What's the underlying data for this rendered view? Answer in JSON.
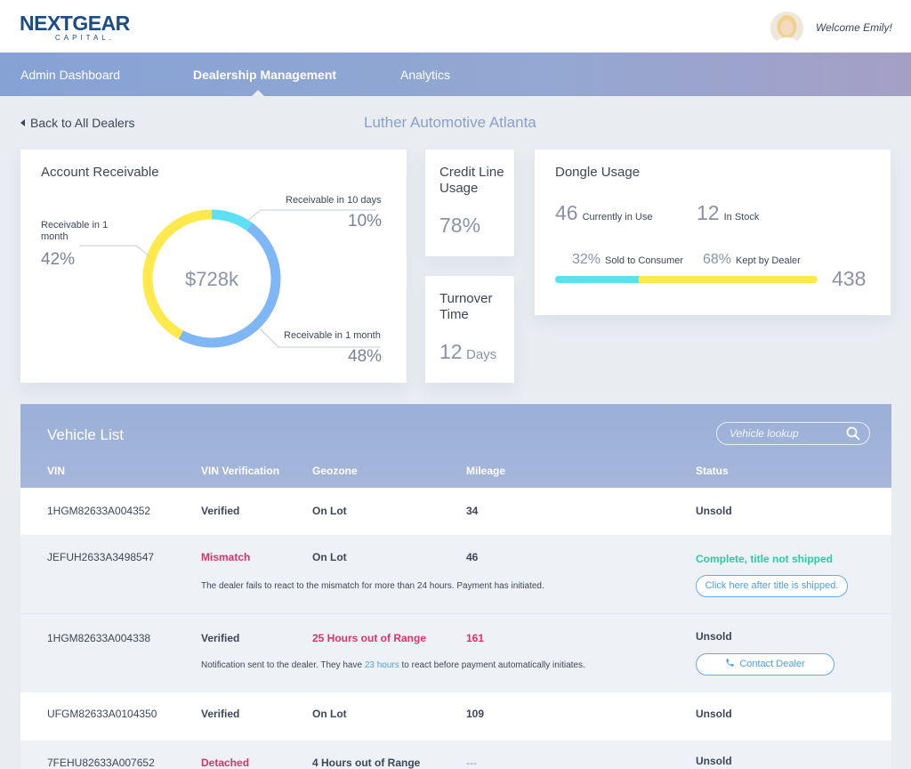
{
  "brand": {
    "logo_main": "NEXTGEAR",
    "logo_sub": "CAPITAL."
  },
  "header": {
    "welcome": "Welcome Emily!"
  },
  "nav": {
    "items": [
      "Admin Dashboard",
      "Dealership Management",
      "Analytics"
    ],
    "active": "Dealership Management"
  },
  "page": {
    "back_label": "Back to All Dealers",
    "dealer_name": "Luther Automotive Atlanta"
  },
  "receivable": {
    "title": "Account Receivable",
    "total": "$728k",
    "segments": [
      {
        "label": "Receivable in 10 days",
        "pct": "10%",
        "value": 10,
        "color": "#5de0f2"
      },
      {
        "label": "Receivable in 1 month",
        "pct": "48%",
        "value": 48,
        "color": "#7fb6f5"
      },
      {
        "label": "Receivable in 1 month",
        "pct": "42%",
        "value": 42,
        "color": "#ffe94d"
      }
    ]
  },
  "credit": {
    "title": "Credit Line Usage",
    "value": "78%"
  },
  "turnover": {
    "title": "Turnover Time",
    "value": "12",
    "unit": "Days"
  },
  "dongle": {
    "title": "Dongle Usage",
    "in_use": "46",
    "in_use_label": "Currently in Use",
    "in_stock": "12",
    "in_stock_label": "In Stock",
    "sold_pct": "32%",
    "sold_label": "Sold to Consumer",
    "sold_value": 32,
    "kept_pct": "68%",
    "kept_label": "Kept by Dealer",
    "total": "438"
  },
  "vehicles": {
    "title": "Vehicle List",
    "search_placeholder": "Vehicle lookup",
    "columns": [
      "VIN",
      "VIN Verification",
      "Geozone",
      "Mileage",
      "Status"
    ],
    "rows": [
      {
        "vin": "1HGM82633A004352",
        "verification": "Verified",
        "geozone": "On Lot",
        "mileage": "34",
        "status": "Unsold"
      },
      {
        "vin": "JEFUH2633A3498547",
        "verification": "Mismatch",
        "geozone": "On Lot",
        "mileage": "46",
        "status": "Complete, title not shipped",
        "note": "The dealer fails to react to the mismatch for more than 24 hours. Payment has initiated.",
        "action": "Click here after title is shipped."
      },
      {
        "vin": "1HGM82633A004338",
        "verification": "Verified",
        "geozone": "25 Hours out of Range",
        "mileage": "161",
        "status": "Unsold",
        "note_before": "Notification sent to the dealer. They have ",
        "note_highlight": "23 hours",
        "note_after": " to react before payment automatically initiates.",
        "action": "Contact Dealer"
      },
      {
        "vin": "UFGM82633A0104350",
        "verification": "Verified",
        "geozone": "On Lot",
        "mileage": "109",
        "status": "Unsold"
      },
      {
        "vin": "7FEHU82633A007652",
        "verification": "Detached",
        "geozone": "4 Hours out of Range",
        "mileage": "---",
        "status": "Unsold"
      }
    ]
  }
}
